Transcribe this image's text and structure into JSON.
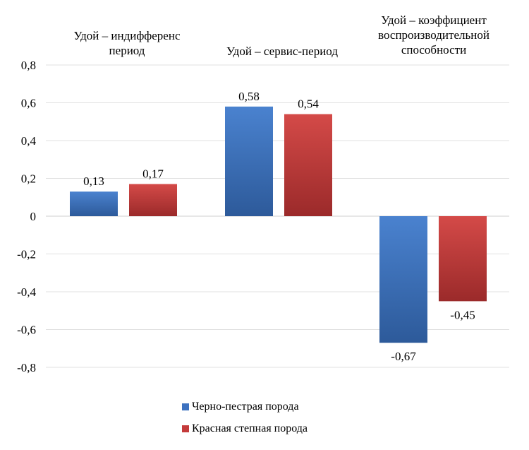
{
  "chart_data": {
    "type": "bar",
    "title": "",
    "xlabel": "",
    "ylabel": "",
    "ylim": [
      -0.8,
      0.8
    ],
    "yticks": [
      0.8,
      0.6,
      0.4,
      0.2,
      0,
      -0.2,
      -0.4,
      -0.6,
      -0.8
    ],
    "ytick_labels": [
      "0,8",
      "0,6",
      "0,4",
      "0,2",
      "0",
      "-0,2",
      "-0,4",
      "-0,6",
      "-0,8"
    ],
    "grid": true,
    "categories": [
      "Удой – индифференс\nпериод",
      "Удой – сервис-период",
      "Удой – коэффициент\nвоспроизводительной\nспособности"
    ],
    "series": [
      {
        "name": "Черно-пестрая порода",
        "values": [
          0.13,
          0.58,
          -0.67
        ],
        "labels": [
          "0,13",
          "0,58",
          "-0,67"
        ],
        "color": "#3d72c0"
      },
      {
        "name": "Красная степная порода",
        "values": [
          0.17,
          0.54,
          -0.45
        ],
        "labels": [
          "0,17",
          "0,54",
          "-0,45"
        ],
        "color": "#c43b3b"
      }
    ],
    "legend_position": "bottom"
  }
}
